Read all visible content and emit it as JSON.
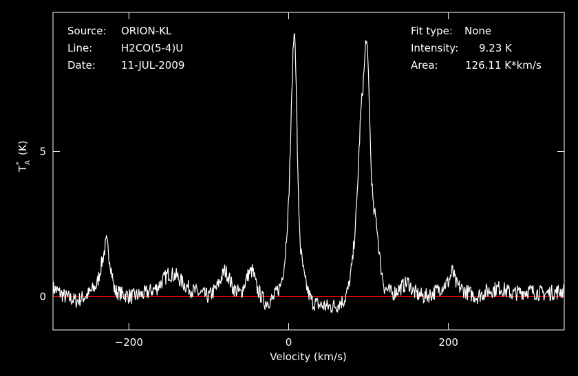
{
  "info": {
    "source_label": "Source:",
    "source_value": "ORION-KL",
    "line_label": "Line:",
    "line_value": "H2CO(5-4)U",
    "date_label": "Date:",
    "date_value": "11-JUL-2009",
    "fit_label": "Fit type:",
    "fit_value": "None",
    "intensity_label": "Intensity:",
    "intensity_value": "9.23 K",
    "area_label": "Area:",
    "area_value": "126.11 K*km/s"
  },
  "chart_data": {
    "type": "line",
    "xlabel": "Velocity (km/s)",
    "ylabel": "T",
    "ylabel_sup": "*",
    "ylabel_sub": "A",
    "ylabel_unit": "(K)",
    "xlim": [
      -295,
      345
    ],
    "ylim": [
      -1.15,
      9.8
    ],
    "x_ticks": [
      {
        "value": -200,
        "label": "−200"
      },
      {
        "value": 0,
        "label": "0"
      },
      {
        "value": 200,
        "label": "200"
      }
    ],
    "y_ticks": [
      {
        "value": 0,
        "label": "0"
      },
      {
        "value": 5,
        "label": "5"
      }
    ],
    "baseline": 0,
    "baseline_color": "#ff0000",
    "line_color": "#ffffff",
    "axes_color": "#ffffff",
    "background": "#000000",
    "series": [
      {
        "x": [
          -295,
          -280,
          -265,
          -250,
          -240,
          -232,
          -228,
          -224,
          -218,
          -210,
          -195,
          -180,
          -165,
          -150,
          -140,
          -130,
          -120,
          -110,
          -100,
          -90,
          -80,
          -75,
          -70,
          -60,
          -50,
          -45,
          -40,
          -30,
          -20,
          -10,
          -5,
          0,
          3,
          6,
          8,
          10,
          12,
          15,
          20,
          25,
          30,
          40,
          50,
          60,
          70,
          75,
          80,
          85,
          90,
          95,
          97,
          100,
          103,
          106,
          110,
          115,
          120,
          130,
          140,
          150,
          155,
          160,
          170,
          180,
          190,
          200,
          205,
          210,
          220,
          235,
          250,
          265,
          280,
          300,
          320,
          345
        ],
        "y": [
          0.3,
          0.0,
          -0.15,
          0.1,
          0.4,
          1.4,
          1.9,
          1.3,
          0.2,
          0.1,
          0.0,
          0.1,
          0.3,
          0.8,
          0.7,
          0.4,
          0.2,
          0.1,
          0.0,
          0.3,
          0.9,
          0.7,
          0.3,
          0.1,
          0.8,
          0.9,
          0.3,
          -0.2,
          -0.1,
          0.4,
          1.2,
          3.2,
          6.0,
          8.8,
          9.2,
          6.5,
          3.5,
          1.6,
          0.6,
          0.1,
          -0.2,
          -0.3,
          -0.35,
          -0.3,
          -0.1,
          0.3,
          1.2,
          3.0,
          6.2,
          8.0,
          9.05,
          7.6,
          4.6,
          3.0,
          2.6,
          1.1,
          0.3,
          0.1,
          0.3,
          0.5,
          0.2,
          0.1,
          0.0,
          0.1,
          0.3,
          0.5,
          0.9,
          0.4,
          0.2,
          0.0,
          0.2,
          0.3,
          0.1,
          0.2,
          0.1,
          0.2
        ]
      }
    ]
  }
}
